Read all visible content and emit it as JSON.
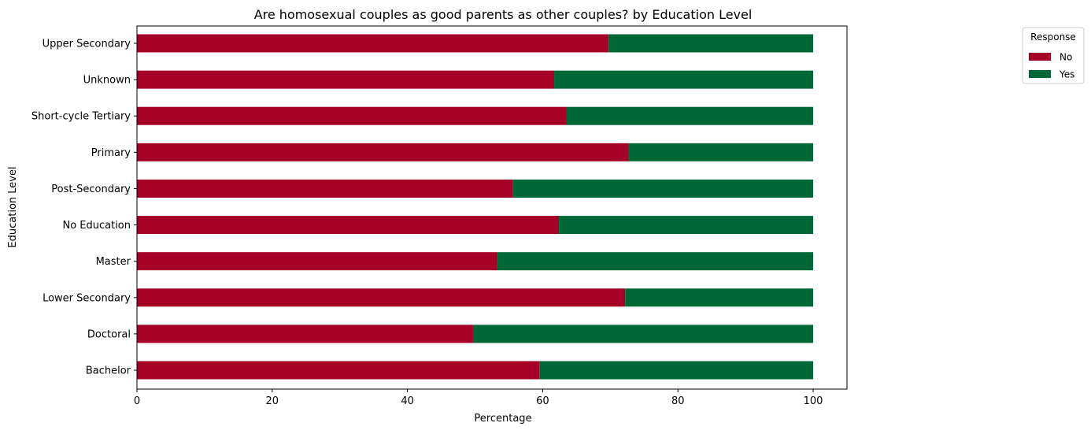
{
  "chart_data": {
    "type": "bar",
    "orientation": "horizontal",
    "stacked": true,
    "title": "Are homosexual couples as good parents as other couples? by Education Level",
    "xlabel": "Percentage",
    "ylabel": "Education Level",
    "xlim": [
      0,
      105
    ],
    "xticks": [
      0,
      20,
      40,
      60,
      80,
      100
    ],
    "grid": false,
    "legend": {
      "title": "Response",
      "placement": "outside top-right"
    },
    "categories": [
      "Upper Secondary",
      "Unknown",
      "Short-cycle Tertiary",
      "Primary",
      "Post-Secondary",
      "No Education",
      "Master",
      "Lower Secondary",
      "Doctoral",
      "Bachelor"
    ],
    "series": [
      {
        "name": "No",
        "color": "#a50026",
        "values": [
          69.7,
          61.7,
          63.5,
          72.7,
          55.6,
          62.4,
          53.3,
          72.2,
          49.7,
          59.5
        ]
      },
      {
        "name": "Yes",
        "color": "#006837",
        "values": [
          30.3,
          38.3,
          36.5,
          27.3,
          44.4,
          37.6,
          46.7,
          27.8,
          50.3,
          40.5
        ]
      }
    ]
  }
}
